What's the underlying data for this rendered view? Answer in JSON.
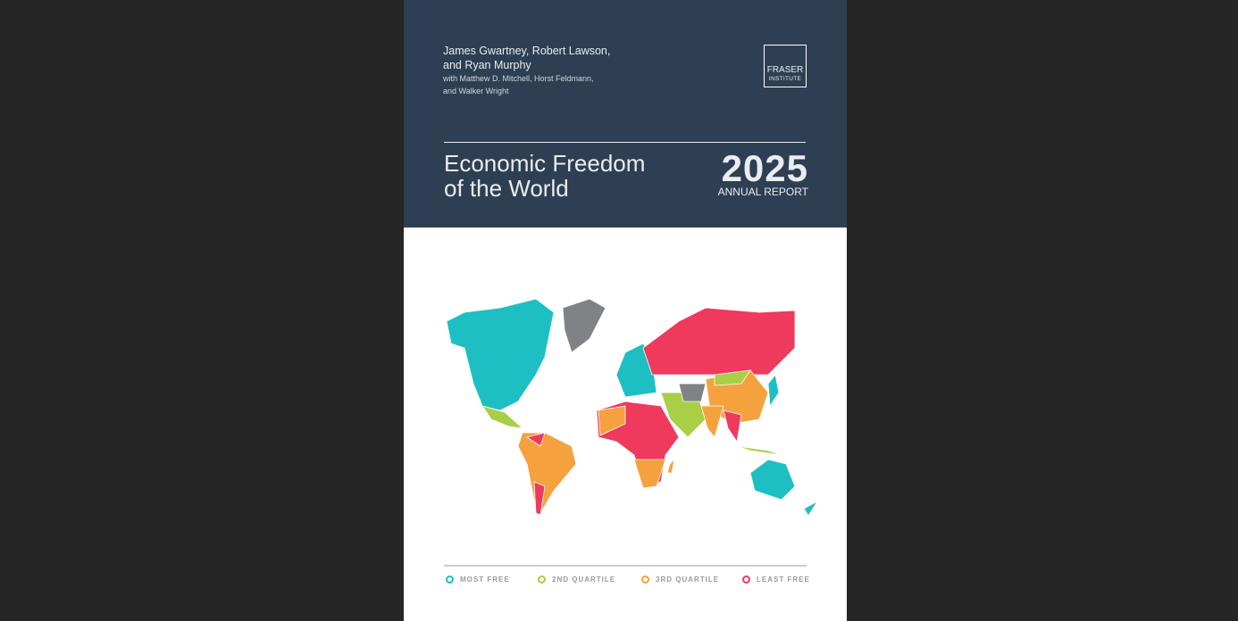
{
  "header": {
    "authors": [
      "James Gwartney, Robert Lawson,",
      "and Ryan Murphy"
    ],
    "contributors": [
      "with Matthew D. Mitchell, Horst Feldmann,",
      "and Walker Wright"
    ],
    "logo": [
      "FRASER",
      "INSTITUTE"
    ],
    "title": [
      "Economic Freedom",
      "of the World"
    ],
    "year": "2025",
    "subtitle": "ANNUAL REPORT"
  },
  "legend": {
    "items": [
      {
        "label": "MOST FREE",
        "color": "#1ebfc2"
      },
      {
        "label": "2ND QUARTILE",
        "color": "#a9cf46"
      },
      {
        "label": "3RD QUARTILE",
        "color": "#f5a13e"
      },
      {
        "label": "LEAST FREE",
        "color": "#ef3a5d"
      }
    ]
  }
}
